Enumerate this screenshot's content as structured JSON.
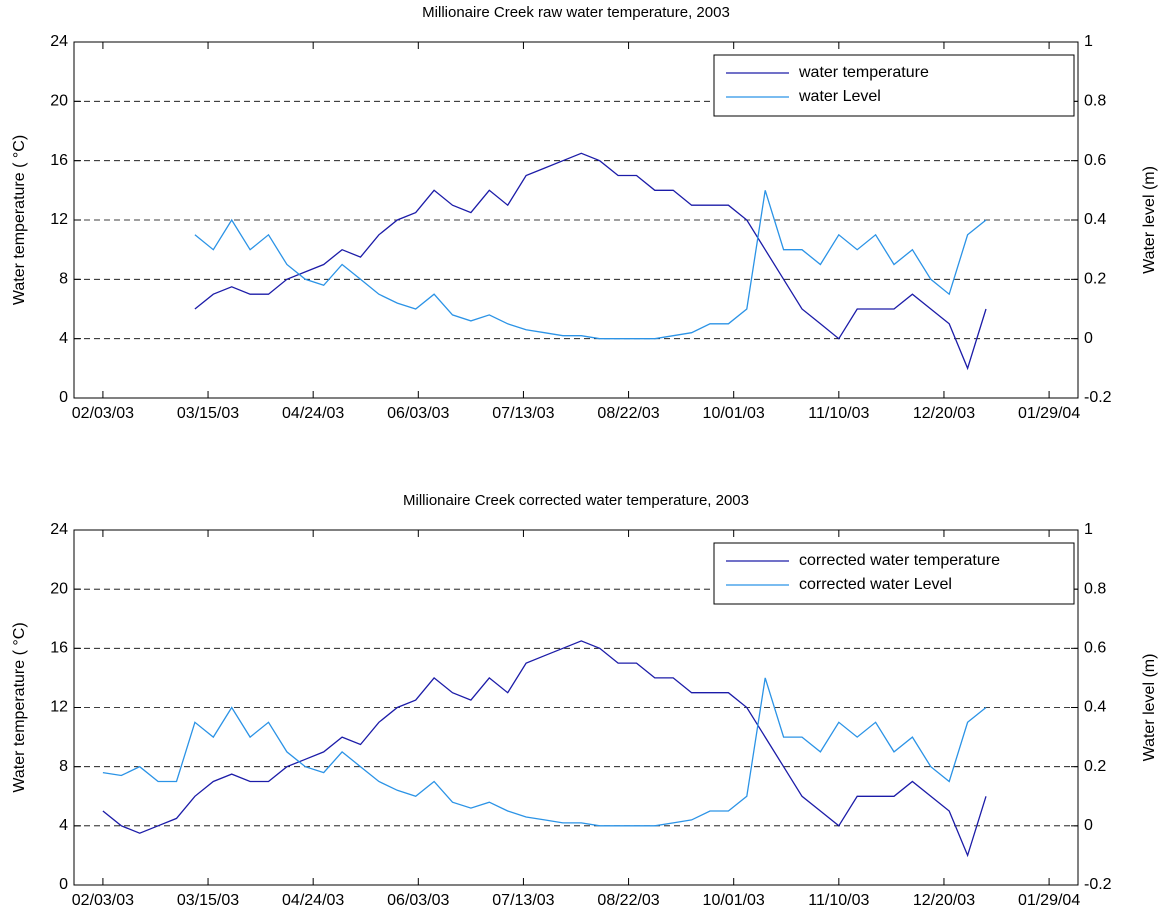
{
  "chart_data": [
    {
      "type": "line",
      "title": "Millionaire Creek raw water temperature, 2003",
      "ylabel": "Water temperature ( °C)",
      "y2label": "Water level (m)",
      "x": [
        "2003-02-03",
        "2003-02-10",
        "2003-02-17",
        "2003-02-24",
        "2003-03-03",
        "2003-03-10",
        "2003-03-17",
        "2003-03-24",
        "2003-03-31",
        "2003-04-07",
        "2003-04-14",
        "2003-04-21",
        "2003-04-28",
        "2003-05-05",
        "2003-05-12",
        "2003-05-19",
        "2003-05-26",
        "2003-06-02",
        "2003-06-09",
        "2003-06-16",
        "2003-06-23",
        "2003-06-30",
        "2003-07-07",
        "2003-07-14",
        "2003-07-21",
        "2003-07-28",
        "2003-08-04",
        "2003-08-11",
        "2003-08-18",
        "2003-08-25",
        "2003-09-01",
        "2003-09-08",
        "2003-09-15",
        "2003-09-22",
        "2003-09-29",
        "2003-10-06",
        "2003-10-13",
        "2003-10-20",
        "2003-10-27",
        "2003-11-03",
        "2003-11-10",
        "2003-11-17",
        "2003-11-24",
        "2003-12-01",
        "2003-12-08",
        "2003-12-15",
        "2003-12-22",
        "2003-12-29",
        "2004-01-05"
      ],
      "xlim": [
        "2003-01-23",
        "2004-02-09"
      ],
      "xticks": [
        {
          "value": "2003-02-03",
          "label": "02/03/03"
        },
        {
          "value": "2003-03-15",
          "label": "03/15/03"
        },
        {
          "value": "2003-04-24",
          "label": "04/24/03"
        },
        {
          "value": "2003-06-03",
          "label": "06/03/03"
        },
        {
          "value": "2003-07-13",
          "label": "07/13/03"
        },
        {
          "value": "2003-08-22",
          "label": "08/22/03"
        },
        {
          "value": "2003-10-01",
          "label": "10/01/03"
        },
        {
          "value": "2003-11-10",
          "label": "11/10/03"
        },
        {
          "value": "2003-12-20",
          "label": "12/20/03"
        },
        {
          "value": "2004-01-29",
          "label": "01/29/04"
        }
      ],
      "ylim": [
        0,
        24
      ],
      "yticks": [
        0,
        4,
        8,
        12,
        16,
        20,
        24
      ],
      "y2lim": [
        -0.2,
        1
      ],
      "y2ticks": [
        -0.2,
        0,
        0.2,
        0.4,
        0.6,
        0.8,
        1
      ],
      "grid": true,
      "legend": "upper right",
      "series": [
        {
          "name": "water temperature",
          "color": "#1c1ca8",
          "values": [
            null,
            null,
            null,
            null,
            null,
            6,
            7,
            7.5,
            7,
            7,
            8,
            8.5,
            9,
            10,
            9.5,
            11,
            12,
            12.5,
            14,
            13,
            12.5,
            14,
            13,
            15,
            15.5,
            16,
            16.5,
            16,
            15,
            15,
            14,
            14,
            13,
            13,
            13,
            12,
            10,
            8,
            6,
            5,
            4,
            6,
            6,
            6,
            7,
            6,
            5,
            2,
            6
          ]
        },
        {
          "name": "water Level",
          "color": "#2b93e6",
          "axis": "y2",
          "values": [
            null,
            null,
            null,
            null,
            null,
            0.35,
            0.3,
            0.4,
            0.3,
            0.35,
            0.25,
            0.2,
            0.18,
            0.25,
            0.2,
            0.15,
            0.12,
            0.1,
            0.15,
            0.08,
            0.06,
            0.08,
            0.05,
            0.03,
            0.02,
            0.01,
            0.01,
            0.0,
            0.0,
            0.0,
            0.0,
            0.01,
            0.02,
            0.05,
            0.05,
            0.1,
            0.5,
            0.3,
            0.3,
            0.25,
            0.35,
            0.3,
            0.35,
            0.25,
            0.3,
            0.2,
            0.15,
            0.35,
            0.4
          ]
        }
      ]
    },
    {
      "type": "line",
      "title": "Millionaire Creek corrected water temperature, 2003",
      "ylabel": "Water temperature ( °C)",
      "y2label": "Water level (m)",
      "x": [
        "2003-02-03",
        "2003-02-10",
        "2003-02-17",
        "2003-02-24",
        "2003-03-03",
        "2003-03-10",
        "2003-03-17",
        "2003-03-24",
        "2003-03-31",
        "2003-04-07",
        "2003-04-14",
        "2003-04-21",
        "2003-04-28",
        "2003-05-05",
        "2003-05-12",
        "2003-05-19",
        "2003-05-26",
        "2003-06-02",
        "2003-06-09",
        "2003-06-16",
        "2003-06-23",
        "2003-06-30",
        "2003-07-07",
        "2003-07-14",
        "2003-07-21",
        "2003-07-28",
        "2003-08-04",
        "2003-08-11",
        "2003-08-18",
        "2003-08-25",
        "2003-09-01",
        "2003-09-08",
        "2003-09-15",
        "2003-09-22",
        "2003-09-29",
        "2003-10-06",
        "2003-10-13",
        "2003-10-20",
        "2003-10-27",
        "2003-11-03",
        "2003-11-10",
        "2003-11-17",
        "2003-11-24",
        "2003-12-01",
        "2003-12-08",
        "2003-12-15",
        "2003-12-22",
        "2003-12-29",
        "2004-01-05"
      ],
      "xlim": [
        "2003-01-23",
        "2004-02-09"
      ],
      "xticks": [
        {
          "value": "2003-02-03",
          "label": "02/03/03"
        },
        {
          "value": "2003-03-15",
          "label": "03/15/03"
        },
        {
          "value": "2003-04-24",
          "label": "04/24/03"
        },
        {
          "value": "2003-06-03",
          "label": "06/03/03"
        },
        {
          "value": "2003-07-13",
          "label": "07/13/03"
        },
        {
          "value": "2003-08-22",
          "label": "08/22/03"
        },
        {
          "value": "2003-10-01",
          "label": "10/01/03"
        },
        {
          "value": "2003-11-10",
          "label": "11/10/03"
        },
        {
          "value": "2003-12-20",
          "label": "12/20/03"
        },
        {
          "value": "2004-01-29",
          "label": "01/29/04"
        }
      ],
      "ylim": [
        0,
        24
      ],
      "yticks": [
        0,
        4,
        8,
        12,
        16,
        20,
        24
      ],
      "y2lim": [
        -0.2,
        1
      ],
      "y2ticks": [
        -0.2,
        0,
        0.2,
        0.4,
        0.6,
        0.8,
        1
      ],
      "grid": true,
      "legend": "upper right",
      "series": [
        {
          "name": "corrected water temperature",
          "color": "#1c1ca8",
          "values": [
            5,
            4,
            3.5,
            4,
            4.5,
            6,
            7,
            7.5,
            7,
            7,
            8,
            8.5,
            9,
            10,
            9.5,
            11,
            12,
            12.5,
            14,
            13,
            12.5,
            14,
            13,
            15,
            15.5,
            16,
            16.5,
            16,
            15,
            15,
            14,
            14,
            13,
            13,
            13,
            12,
            10,
            8,
            6,
            5,
            4,
            6,
            6,
            6,
            7,
            6,
            5,
            2,
            6
          ]
        },
        {
          "name": "corrected water Level",
          "color": "#2b93e6",
          "axis": "y2",
          "values": [
            0.18,
            0.17,
            0.2,
            0.15,
            0.15,
            0.35,
            0.3,
            0.4,
            0.3,
            0.35,
            0.25,
            0.2,
            0.18,
            0.25,
            0.2,
            0.15,
            0.12,
            0.1,
            0.15,
            0.08,
            0.06,
            0.08,
            0.05,
            0.03,
            0.02,
            0.01,
            0.01,
            0.0,
            0.0,
            0.0,
            0.0,
            0.01,
            0.02,
            0.05,
            0.05,
            0.1,
            0.5,
            0.3,
            0.3,
            0.25,
            0.35,
            0.3,
            0.35,
            0.25,
            0.3,
            0.2,
            0.15,
            0.35,
            0.4
          ]
        }
      ]
    }
  ]
}
